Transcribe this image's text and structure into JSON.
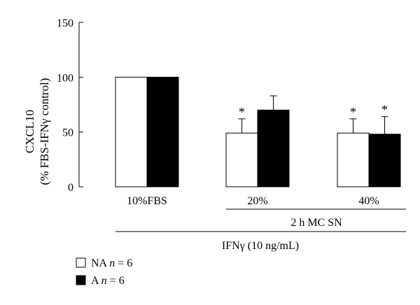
{
  "chart_data": {
    "type": "bar",
    "ylabel_line1": "CXCL10",
    "ylabel_line2": "(% FBS-IFNγ control)",
    "ylim": [
      0,
      150
    ],
    "yticks": [
      0,
      50,
      100,
      150
    ],
    "grid": false,
    "categories": [
      "10%FBS",
      "20%",
      "40%"
    ],
    "series": [
      {
        "name": "NA",
        "color": "#ffffff",
        "values": [
          100,
          49,
          49
        ],
        "errors": [
          0,
          13,
          13
        ],
        "significant": [
          false,
          true,
          true
        ]
      },
      {
        "name": "A",
        "color": "#000000",
        "values": [
          100,
          70,
          48
        ],
        "errors": [
          0,
          13,
          16
        ],
        "significant": [
          false,
          false,
          true
        ]
      }
    ],
    "significance_marker": "*",
    "group_labels": {
      "mc_sn": "2 h MC SN",
      "ifn": "IFNγ (10 ng/mL)"
    },
    "legend": {
      "placement": "bottom-left",
      "entries": [
        {
          "prefix": "NA",
          "n_symbol": "n",
          "n_value": "= 6",
          "color": "#ffffff"
        },
        {
          "prefix": "A",
          "n_symbol": "n",
          "n_value": "= 6",
          "color": "#000000"
        }
      ]
    }
  }
}
